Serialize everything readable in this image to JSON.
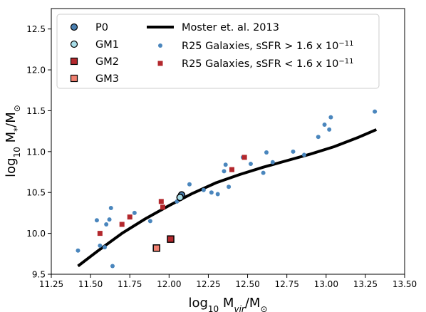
{
  "chart_data": {
    "type": "scatter",
    "xlim": [
      11.25,
      13.5
    ],
    "ylim": [
      9.5,
      12.75
    ],
    "x_ticks": [
      "11.25",
      "11.50",
      "11.75",
      "12.00",
      "12.25",
      "12.50",
      "12.75",
      "13.00",
      "13.25",
      "13.50"
    ],
    "y_ticks": [
      "9.5",
      "10.0",
      "10.5",
      "11.0",
      "11.5",
      "12.0",
      "12.5"
    ],
    "x_tick_values": [
      11.25,
      11.5,
      11.75,
      12.0,
      12.25,
      12.5,
      12.75,
      13.0,
      13.25,
      13.5
    ],
    "y_tick_values": [
      9.5,
      10.0,
      10.5,
      11.0,
      11.5,
      12.0,
      12.5
    ],
    "xlabel": {
      "pre": "log",
      "sub": "10",
      "mid": " M",
      "sub2": "vir",
      "post": "/M",
      "sun": "⊙"
    },
    "ylabel": {
      "pre": "log",
      "sub": "10",
      "mid": " M",
      "sub2": "*",
      "post": "/M",
      "sun": "⊙"
    },
    "legend_placement": "top-left",
    "grid": false,
    "series": [
      {
        "name": "P0",
        "marker": "circle",
        "color": "#4a7fb0",
        "edge": "#000000",
        "points": [
          [
            12.08,
            10.47
          ]
        ]
      },
      {
        "name": "GM1",
        "marker": "circle",
        "color": "#a8dde8",
        "edge": "#000000",
        "points": [
          [
            12.07,
            10.44
          ]
        ]
      },
      {
        "name": "GM2",
        "marker": "square",
        "color": "#b3282d",
        "edge": "#000000",
        "points": [
          [
            12.01,
            9.93
          ]
        ]
      },
      {
        "name": "GM3",
        "marker": "square",
        "color": "#f08070",
        "edge": "#000000",
        "points": [
          [
            11.92,
            9.82
          ]
        ]
      },
      {
        "name": "Moster et. al. 2013",
        "marker": "line",
        "color": "#000000",
        "points": [
          [
            11.42,
            9.6
          ],
          [
            11.55,
            9.79
          ],
          [
            11.7,
            10.0
          ],
          [
            11.85,
            10.18
          ],
          [
            12.0,
            10.34
          ],
          [
            12.15,
            10.49
          ],
          [
            12.3,
            10.62
          ],
          [
            12.45,
            10.72
          ],
          [
            12.6,
            10.81
          ],
          [
            12.75,
            10.89
          ],
          [
            12.9,
            10.97
          ],
          [
            13.05,
            11.06
          ],
          [
            13.2,
            11.17
          ],
          [
            13.32,
            11.27
          ]
        ]
      },
      {
        "name": "R25 Galaxies, sSFR > 1.6 x 10",
        "name_sup": "−11",
        "marker": "dot",
        "color": "#4a86bd",
        "points": [
          [
            11.42,
            9.79
          ],
          [
            11.54,
            10.16
          ],
          [
            11.56,
            9.85
          ],
          [
            11.59,
            9.83
          ],
          [
            11.6,
            10.11
          ],
          [
            11.62,
            10.17
          ],
          [
            11.63,
            10.31
          ],
          [
            11.64,
            9.6
          ],
          [
            11.78,
            10.25
          ],
          [
            11.88,
            10.15
          ],
          [
            12.05,
            10.39
          ],
          [
            12.08,
            10.47
          ],
          [
            12.13,
            10.6
          ],
          [
            12.22,
            10.53
          ],
          [
            12.27,
            10.5
          ],
          [
            12.31,
            10.48
          ],
          [
            12.35,
            10.76
          ],
          [
            12.36,
            10.84
          ],
          [
            12.38,
            10.57
          ],
          [
            12.47,
            10.93
          ],
          [
            12.52,
            10.85
          ],
          [
            12.6,
            10.74
          ],
          [
            12.62,
            10.99
          ],
          [
            12.66,
            10.87
          ],
          [
            12.79,
            11.0
          ],
          [
            12.86,
            10.96
          ],
          [
            12.95,
            11.18
          ],
          [
            12.99,
            11.33
          ],
          [
            13.02,
            11.27
          ],
          [
            13.03,
            11.42
          ],
          [
            13.31,
            11.49
          ]
        ]
      },
      {
        "name": "R25 Galaxies, sSFR < 1.6 x 10",
        "name_sup": "−11",
        "marker": "smallsquare",
        "color": "#b3282d",
        "points": [
          [
            11.56,
            10.0
          ],
          [
            11.7,
            10.11
          ],
          [
            11.75,
            10.2
          ],
          [
            11.95,
            10.39
          ],
          [
            11.96,
            10.32
          ],
          [
            12.48,
            10.93
          ],
          [
            12.4,
            10.78
          ]
        ]
      }
    ]
  }
}
